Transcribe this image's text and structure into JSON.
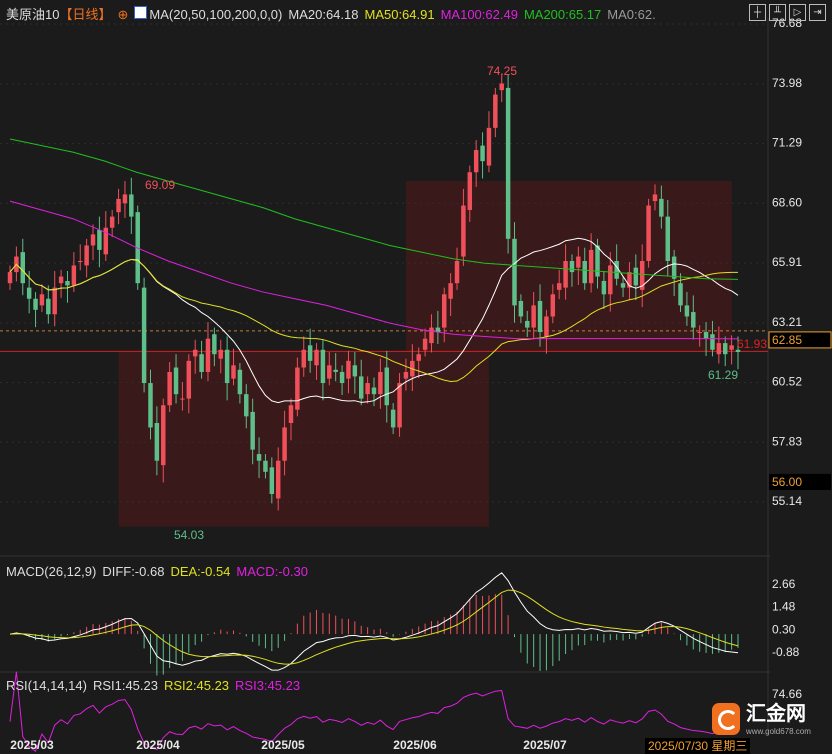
{
  "header": {
    "symbol": "美原油10",
    "period": "【日线】",
    "ma_label": "MA(20,50,100,200,0,0)",
    "ma20": "MA20:64.18",
    "ma50": "MA50:64.91",
    "ma100": "MA100:62.49",
    "ma200": "MA200:65.17",
    "ma0": "MA0:62."
  },
  "toolbar_icons": [
    "crosshair-icon",
    "bar-chart-icon",
    "play-icon",
    "exit-icon"
  ],
  "macd_header": {
    "label": "MACD(26,12,9)",
    "diff": "DIFF:-0.68",
    "dea": "DEA:-0.54",
    "macd": "MACD:-0.30"
  },
  "rsi_header": {
    "label": "RSI(14,14,14)",
    "rsi1": "RSI1:45.23",
    "rsi2": "RSI2:45.23",
    "rsi3": "RSI3:45.23"
  },
  "logo": {
    "text": "汇金网",
    "url_text": "www.gold678.com"
  },
  "current_date": "2025/07/30 星期三",
  "colors": {
    "up": "#f0505a",
    "down": "#5fbf8a",
    "ma20": "#ffffff",
    "ma50": "#e0e020",
    "ma100": "#e020e0",
    "ma200": "#20c020",
    "box": "#3d1a1a",
    "accent": "#f0a030"
  },
  "chart_data": {
    "type": "candlestick",
    "price_axis": {
      "ticks": [
        "76.68",
        "73.98",
        "71.29",
        "68.60",
        "65.91",
        "63.21",
        "60.52",
        "57.83",
        "55.14"
      ],
      "range": [
        55.14,
        76.68
      ],
      "current_price": "62.85",
      "marked_price": "56.00"
    },
    "annotations": {
      "high": "74.25",
      "low": "54.03",
      "local_high": "69.09",
      "recent_low": "61.29",
      "last": "61.93"
    },
    "x_labels": [
      "2025/03",
      "2025/04",
      "2025/05",
      "2025/06",
      "2025/07"
    ],
    "close": [
      65.5,
      66.2,
      65.0,
      64.3,
      63.8,
      64.5,
      63.6,
      64.8,
      65.3,
      64.9,
      65.8,
      66.0,
      66.7,
      67.2,
      66.5,
      67.5,
      68.0,
      68.8,
      69.0,
      68.0,
      65.0,
      60.5,
      58.5,
      57.0,
      59.5,
      61.0,
      60.0,
      59.8,
      61.5,
      62.0,
      61.0,
      62.5,
      61.8,
      62.0,
      60.5,
      61.3,
      60.0,
      59.0,
      57.5,
      57.0,
      56.5,
      55.5,
      57.0,
      58.5,
      59.5,
      61.2,
      62.0,
      61.5,
      62.0,
      60.5,
      61.3,
      61.0,
      60.5,
      61.5,
      60.8,
      59.8,
      60.5,
      60.0,
      61.0,
      59.5,
      58.5,
      60.5,
      61.0,
      61.5,
      61.8,
      62.5,
      63.0,
      62.8,
      64.5,
      65.0,
      66.0,
      68.5,
      70.0,
      71.0,
      70.5,
      72.0,
      73.5,
      74.0,
      67.0,
      64.0,
      63.5,
      63.0,
      64.0,
      62.8,
      63.5,
      64.5,
      65.0,
      66.0,
      65.5,
      66.2,
      65.0,
      66.5,
      65.3,
      64.5,
      65.8,
      65.2,
      64.8,
      65.5,
      64.9,
      66.0,
      68.5,
      69.0,
      68.0,
      66.0,
      65.2,
      64.0,
      63.5,
      63.0,
      62.8,
      62.5,
      62.0,
      62.3,
      61.8,
      62.2,
      61.9
    ],
    "ma100": [
      68.7,
      68.3,
      67.9,
      67.3,
      66.6,
      66.0,
      65.5,
      65.0,
      64.6,
      64.3,
      64.0,
      63.6,
      63.2,
      62.9,
      62.7,
      62.6,
      62.5,
      62.5,
      62.5,
      62.5,
      62.5,
      62.5,
      62.5,
      62.49
    ],
    "ma200": [
      71.5,
      71.2,
      70.9,
      70.5,
      70.0,
      69.6,
      69.2,
      68.8,
      68.4,
      67.9,
      67.5,
      67.1,
      66.7,
      66.4,
      66.1,
      65.9,
      65.8,
      65.7,
      65.6,
      65.5,
      65.4,
      65.3,
      65.2,
      65.17
    ],
    "boxes": [
      {
        "from_price": 61.93,
        "to_price": 54.03,
        "from_index": 17,
        "to_index": 75
      },
      {
        "from_price": 69.6,
        "to_price": 61.93,
        "from_index": 62,
        "to_index": 113
      }
    ],
    "macd_axis": [
      "2.66",
      "1.48",
      "0.30",
      "-0.88"
    ],
    "rsi_axis": [
      "74.66"
    ]
  }
}
